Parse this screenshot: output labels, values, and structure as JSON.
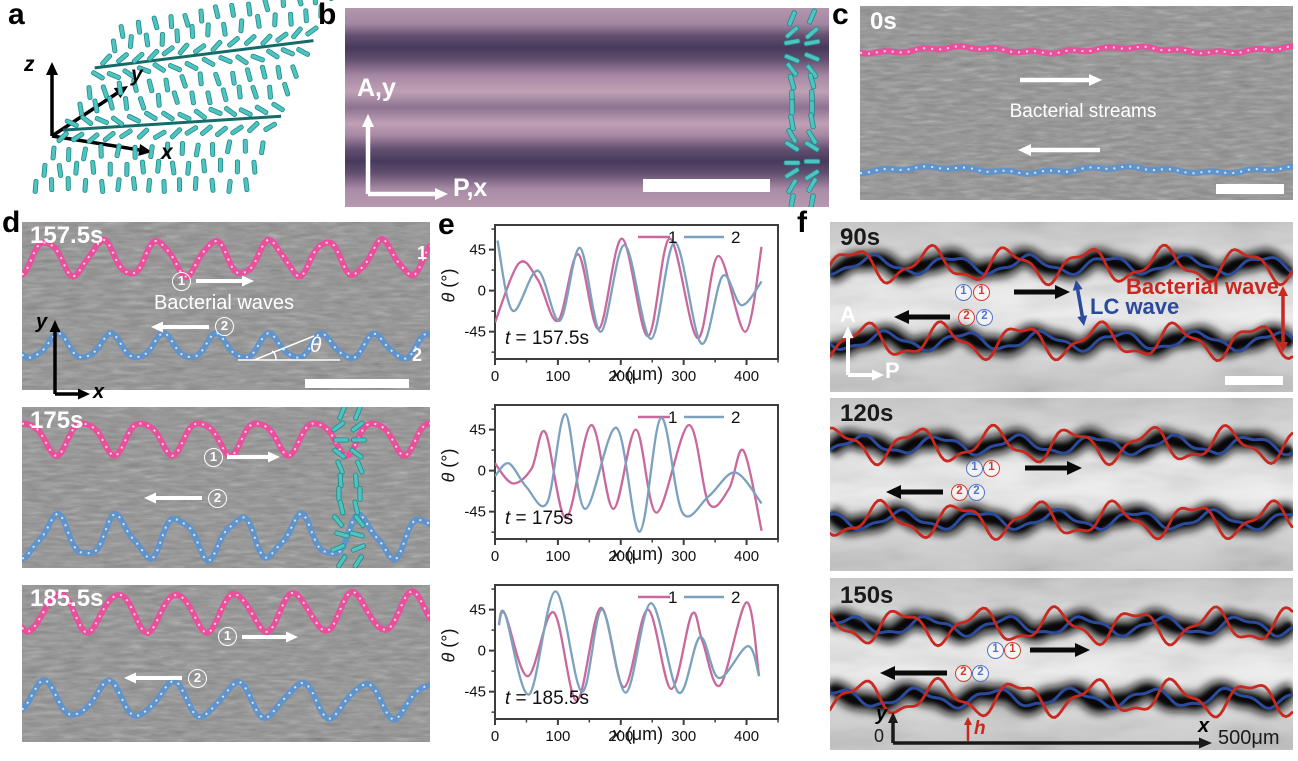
{
  "panels": {
    "a": {
      "label": "a",
      "axis_z": "z",
      "axis_y": "y",
      "axis_x": "x"
    },
    "b": {
      "label": "b",
      "axis_vertical": "A,y",
      "axis_horizontal": "P,x"
    },
    "c": {
      "label": "c",
      "timestamp": "0s",
      "caption": "Bacterial streams"
    },
    "d": {
      "label": "d",
      "caption": "Bacterial waves",
      "angle_symbol": "θ",
      "wave1_label": "1",
      "wave2_label": "2",
      "marker1": "1",
      "marker2": "2",
      "axis_y": "y",
      "axis_x": "x",
      "frames": [
        {
          "timestamp": "157.5s"
        },
        {
          "timestamp": "175s"
        },
        {
          "timestamp": "185.5s"
        }
      ]
    },
    "e": {
      "label": "e"
    },
    "f": {
      "label": "f",
      "bacterial_wave_label": "Bacterial wave",
      "lc_wave_label": "LC wave",
      "marker1": "1",
      "marker2": "2",
      "axis_a": "A",
      "axis_p": "P",
      "axis_y": "y",
      "axis_x": "x",
      "origin_label": "0",
      "scale_label": "500μm",
      "height_label": "h",
      "frames": [
        {
          "timestamp": "90s"
        },
        {
          "timestamp": "120s"
        },
        {
          "timestamp": "150s"
        }
      ]
    }
  },
  "colors": {
    "stream_pink": "#e8509b",
    "stream_blue": "#5f93ca",
    "rod_teal": "#4fc3c2",
    "rod_edge": "#1f8a85",
    "wall_teal": "#166a6a",
    "bacterial_wave_red": "#c9281e",
    "lc_wave_blue": "#2b4a9b",
    "marker_blue": "#5374c8",
    "marker_red": "#d23c30",
    "chart_series1": "#c9689c",
    "chart_series2": "#7ba1bf"
  },
  "chart_data": [
    {
      "type": "line",
      "title": "",
      "xlabel_var": "x",
      "xlabel_unit": " (μm)",
      "ylabel_var": "θ",
      "ylabel_unit": " (°)",
      "annotation_var": "t",
      "annotation_value": " = 157.5s",
      "xlim": [
        0,
        450
      ],
      "ylim": [
        -75,
        72
      ],
      "xticks": [
        0,
        100,
        200,
        300,
        400
      ],
      "yticks": [
        45,
        0,
        -45
      ],
      "x_minor": [
        50,
        150,
        250,
        350,
        450
      ],
      "y_minor": [
        67.5,
        22.5,
        -22.5,
        -67.5
      ],
      "grid": false,
      "legend_position": "top-right",
      "series": [
        {
          "name": "1",
          "color": "#c9689c",
          "keypoints": [
            [
              0,
              -35
            ],
            [
              38,
              30
            ],
            [
              68,
              12
            ],
            [
              100,
              -33
            ],
            [
              132,
              40
            ],
            [
              165,
              -42
            ],
            [
              202,
              57
            ],
            [
              243,
              -50
            ],
            [
              278,
              57
            ],
            [
              322,
              -52
            ],
            [
              355,
              38
            ],
            [
              398,
              -45
            ],
            [
              424,
              48
            ]
          ]
        },
        {
          "name": "2",
          "color": "#7ba1bf",
          "keypoints": [
            [
              4,
              55
            ],
            [
              28,
              -22
            ],
            [
              68,
              22
            ],
            [
              103,
              -33
            ],
            [
              135,
              47
            ],
            [
              168,
              -45
            ],
            [
              206,
              50
            ],
            [
              248,
              -53
            ],
            [
              286,
              53
            ],
            [
              328,
              -58
            ],
            [
              362,
              16
            ],
            [
              392,
              -16
            ],
            [
              424,
              10
            ]
          ]
        }
      ]
    },
    {
      "type": "line",
      "title": "",
      "xlabel_var": "x",
      "xlabel_unit": " (μm)",
      "ylabel_var": "θ",
      "ylabel_unit": " (°)",
      "annotation_var": "t",
      "annotation_value": " = 175s",
      "xlim": [
        0,
        450
      ],
      "ylim": [
        -75,
        72
      ],
      "xticks": [
        0,
        100,
        200,
        300,
        400
      ],
      "yticks": [
        45,
        0,
        -45
      ],
      "x_minor": [
        50,
        150,
        250,
        350,
        450
      ],
      "y_minor": [
        67.5,
        22.5,
        -22.5,
        -67.5
      ],
      "grid": false,
      "legend_position": "top-right",
      "series": [
        {
          "name": "1",
          "color": "#c9689c",
          "keypoints": [
            [
              0,
              8
            ],
            [
              28,
              -14
            ],
            [
              58,
              2
            ],
            [
              80,
              42
            ],
            [
              113,
              -52
            ],
            [
              153,
              50
            ],
            [
              188,
              -42
            ],
            [
              224,
              45
            ],
            [
              257,
              -46
            ],
            [
              308,
              50
            ],
            [
              340,
              -36
            ],
            [
              372,
              -20
            ],
            [
              395,
              22
            ],
            [
              424,
              -66
            ]
          ]
        },
        {
          "name": "2",
          "color": "#7ba1bf",
          "keypoints": [
            [
              0,
              -6
            ],
            [
              22,
              8
            ],
            [
              50,
              -18
            ],
            [
              83,
              -35
            ],
            [
              112,
              62
            ],
            [
              143,
              -42
            ],
            [
              193,
              47
            ],
            [
              230,
              -67
            ],
            [
              264,
              58
            ],
            [
              298,
              -46
            ],
            [
              340,
              -28
            ],
            [
              382,
              -2
            ],
            [
              424,
              -36
            ]
          ]
        }
      ]
    },
    {
      "type": "line",
      "title": "",
      "xlabel_var": "x",
      "xlabel_unit": " (μm)",
      "ylabel_var": "θ",
      "ylabel_unit": " (°)",
      "annotation_var": "t",
      "annotation_value": " = 185.5s",
      "xlim": [
        0,
        450
      ],
      "ylim": [
        -75,
        72
      ],
      "xticks": [
        0,
        100,
        200,
        300,
        400
      ],
      "yticks": [
        45,
        0,
        -45
      ],
      "x_minor": [
        50,
        150,
        250,
        350,
        450
      ],
      "y_minor": [
        67.5,
        22.5,
        -22.5,
        -67.5
      ],
      "grid": false,
      "legend_position": "top-right",
      "series": [
        {
          "name": "1",
          "color": "#c9689c",
          "keypoints": [
            [
              6,
              28
            ],
            [
              16,
              40
            ],
            [
              52,
              -28
            ],
            [
              93,
              42
            ],
            [
              130,
              -55
            ],
            [
              168,
              47
            ],
            [
              205,
              -40
            ],
            [
              243,
              45
            ],
            [
              280,
              -42
            ],
            [
              313,
              40
            ],
            [
              330,
              10
            ],
            [
              358,
              -38
            ],
            [
              400,
              53
            ],
            [
              420,
              -28
            ]
          ]
        },
        {
          "name": "2",
          "color": "#7ba1bf",
          "keypoints": [
            [
              6,
              28
            ],
            [
              16,
              40
            ],
            [
              54,
              -48
            ],
            [
              96,
              65
            ],
            [
              138,
              -45
            ],
            [
              170,
              45
            ],
            [
              208,
              -46
            ],
            [
              248,
              52
            ],
            [
              292,
              -46
            ],
            [
              326,
              15
            ],
            [
              356,
              -30
            ],
            [
              402,
              5
            ],
            [
              420,
              -28
            ]
          ]
        }
      ]
    }
  ]
}
